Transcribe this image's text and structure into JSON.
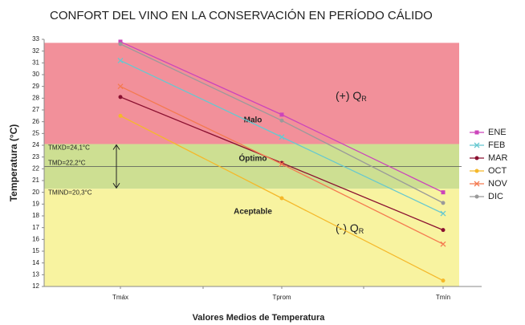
{
  "chart_data": {
    "type": "line",
    "title": "CONFORT DEL VINO EN LA CONSERVACIÓN EN PERÍODO CÁLIDO",
    "x_label": "Valores Medios de Temperatura",
    "y_label": "Temperatura (°C)",
    "categories": [
      "Tmáx",
      "Tprom",
      "Tmín"
    ],
    "series": [
      {
        "name": "ENE",
        "color": "#cc44bb",
        "marker": "square",
        "values": [
          32.8,
          26.6,
          20.0
        ]
      },
      {
        "name": "FEB",
        "color": "#66c8d0",
        "marker": "cross",
        "values": [
          31.2,
          24.7,
          18.2
        ]
      },
      {
        "name": "MAR",
        "color": "#8a1030",
        "marker": "circle",
        "values": [
          28.1,
          22.5,
          16.8
        ]
      },
      {
        "name": "OCT",
        "color": "#f5b82a",
        "marker": "circle",
        "values": [
          26.5,
          19.5,
          12.5
        ]
      },
      {
        "name": "NOV",
        "color": "#f47a50",
        "marker": "cross",
        "values": [
          29.0,
          22.4,
          15.6
        ]
      },
      {
        "name": "DIC",
        "color": "#9a9a9a",
        "marker": "circle",
        "values": [
          32.6,
          26.1,
          19.1
        ]
      }
    ],
    "bands": [
      {
        "label": "Malo",
        "from": 24.1,
        "to": 32.7,
        "color": "#f2909a"
      },
      {
        "label": "Óptimo",
        "from": 20.3,
        "to": 24.1,
        "color": "#cddf92"
      },
      {
        "label": "Aceptable",
        "from": 12,
        "to": 20.3,
        "color": "#f8f3a0"
      }
    ],
    "thresholds": [
      {
        "label": "TMXD=24,1°C",
        "value": 24.1
      },
      {
        "label": "TMD=22,2°C",
        "value": 22.2
      },
      {
        "label": "TMIND=20,3°C",
        "value": 20.3
      }
    ],
    "annotations": [
      {
        "text": "(+) Q",
        "sub": "R"
      },
      {
        "text": "(-) Q",
        "sub": "R"
      }
    ],
    "ylim": [
      12,
      33
    ],
    "yticks": [
      12,
      13,
      14,
      15,
      16,
      17,
      18,
      19,
      20,
      21,
      22,
      23,
      24,
      25,
      26,
      27,
      28,
      29,
      30,
      31,
      32,
      33
    ],
    "legend": "right"
  }
}
